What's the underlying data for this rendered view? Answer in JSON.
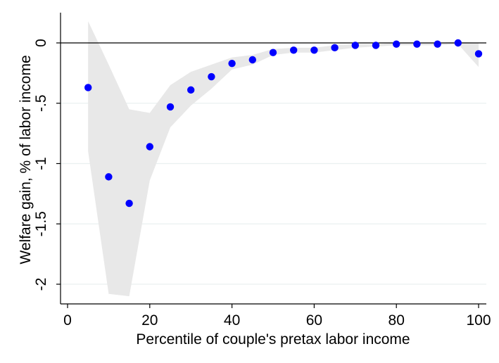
{
  "chart_data": {
    "type": "scatter",
    "xlabel": "Percentile of couple's pretax labor income",
    "ylabel": "Welfare gain, % of labor income",
    "xlim": [
      0,
      100
    ],
    "ylim": [
      -2.2,
      0.2
    ],
    "xticks": [
      0,
      20,
      40,
      60,
      80,
      100
    ],
    "yticks": [
      0,
      -0.5,
      -1,
      -1.5,
      -2
    ],
    "xtick_labels": [
      "0",
      "20",
      "40",
      "60",
      "80",
      "100"
    ],
    "ytick_labels": [
      "0",
      "-.5",
      "-1",
      "-1.5",
      "-2"
    ],
    "grid": "horizontal",
    "reference_line_y": 0,
    "points": [
      {
        "x": 5,
        "y": -0.37
      },
      {
        "x": 10,
        "y": -1.11
      },
      {
        "x": 15,
        "y": -1.33
      },
      {
        "x": 20,
        "y": -0.86
      },
      {
        "x": 25,
        "y": -0.53
      },
      {
        "x": 30,
        "y": -0.39
      },
      {
        "x": 35,
        "y": -0.28
      },
      {
        "x": 40,
        "y": -0.17
      },
      {
        "x": 45,
        "y": -0.14
      },
      {
        "x": 50,
        "y": -0.08
      },
      {
        "x": 55,
        "y": -0.06
      },
      {
        "x": 60,
        "y": -0.06
      },
      {
        "x": 65,
        "y": -0.04
      },
      {
        "x": 70,
        "y": -0.02
      },
      {
        "x": 75,
        "y": -0.02
      },
      {
        "x": 80,
        "y": -0.01
      },
      {
        "x": 85,
        "y": -0.01
      },
      {
        "x": 90,
        "y": -0.01
      },
      {
        "x": 95,
        "y": 0.0
      },
      {
        "x": 100,
        "y": -0.09
      }
    ],
    "band_upper": [
      0.18,
      -0.18,
      -0.55,
      -0.58,
      -0.35,
      -0.24,
      -0.18,
      -0.12,
      -0.1,
      -0.05,
      -0.04,
      -0.04,
      -0.02,
      -0.01,
      -0.01,
      0.0,
      0.0,
      0.0,
      0.01,
      0.0
    ],
    "band_lower": [
      -0.9,
      -2.08,
      -2.1,
      -1.14,
      -0.7,
      -0.52,
      -0.38,
      -0.22,
      -0.18,
      -0.1,
      -0.08,
      -0.08,
      -0.06,
      -0.04,
      -0.03,
      -0.02,
      -0.02,
      -0.02,
      -0.01,
      -0.2
    ],
    "colors": {
      "points": "#0000ff",
      "band": "#e8e8e8",
      "grid": "#eaf0f0",
      "axis": "#000000"
    }
  }
}
